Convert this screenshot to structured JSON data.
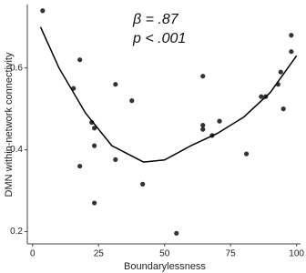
{
  "chart_data": {
    "type": "scatter",
    "x_label": "Boundarylessness",
    "y_label": "DMN within-network connectivity",
    "annotations": [
      "β = .87",
      "p < .001"
    ],
    "xlim": [
      -2,
      101.5
    ],
    "ylim": [
      0.17,
      0.755
    ],
    "xticks": [
      0,
      25,
      50,
      75,
      100
    ],
    "yticks": [
      0.2,
      0.4,
      0.6
    ],
    "grid": false,
    "series": [
      {
        "color": "#333333",
        "x": [
          3.8,
          15.5,
          17.9,
          17.9,
          22.4,
          23.4,
          23.4,
          23.4,
          31.4,
          31.4,
          37.6,
          41.7,
          54.5,
          64.5,
          64.5,
          64.5,
          68,
          70.8,
          81,
          86.6,
          88.3,
          93,
          94,
          95,
          98,
          98
        ],
        "values": [
          0.74,
          0.55,
          0.62,
          0.36,
          0.467,
          0.453,
          0.41,
          0.27,
          0.56,
          0.376,
          0.52,
          0.316,
          0.196,
          0.58,
          0.46,
          0.45,
          0.435,
          0.47,
          0.39,
          0.53,
          0.53,
          0.56,
          0.59,
          0.5,
          0.68,
          0.64
        ]
      },
      {
        "type": "line",
        "color": "#000000",
        "x": [
          3,
          10,
          20,
          30,
          42,
          50,
          60,
          70,
          80,
          90,
          100
        ],
        "values": [
          0.7,
          0.6,
          0.49,
          0.41,
          0.37,
          0.375,
          0.41,
          0.44,
          0.48,
          0.54,
          0.63
        ]
      }
    ]
  }
}
